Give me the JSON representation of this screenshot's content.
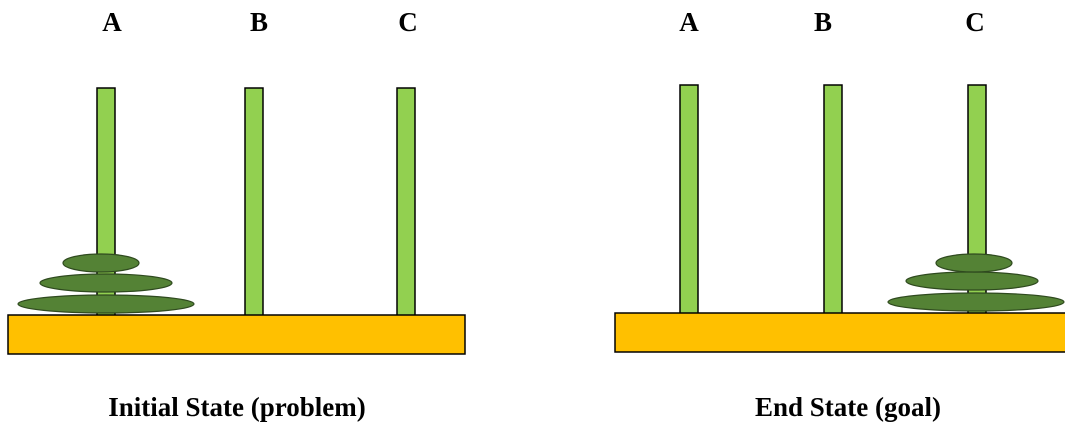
{
  "panels": [
    {
      "pegs": [
        "A",
        "B",
        "C"
      ],
      "caption": "Initial State (problem)"
    },
    {
      "pegs": [
        "A",
        "B",
        "C"
      ],
      "caption": "End State (goal)"
    }
  ]
}
